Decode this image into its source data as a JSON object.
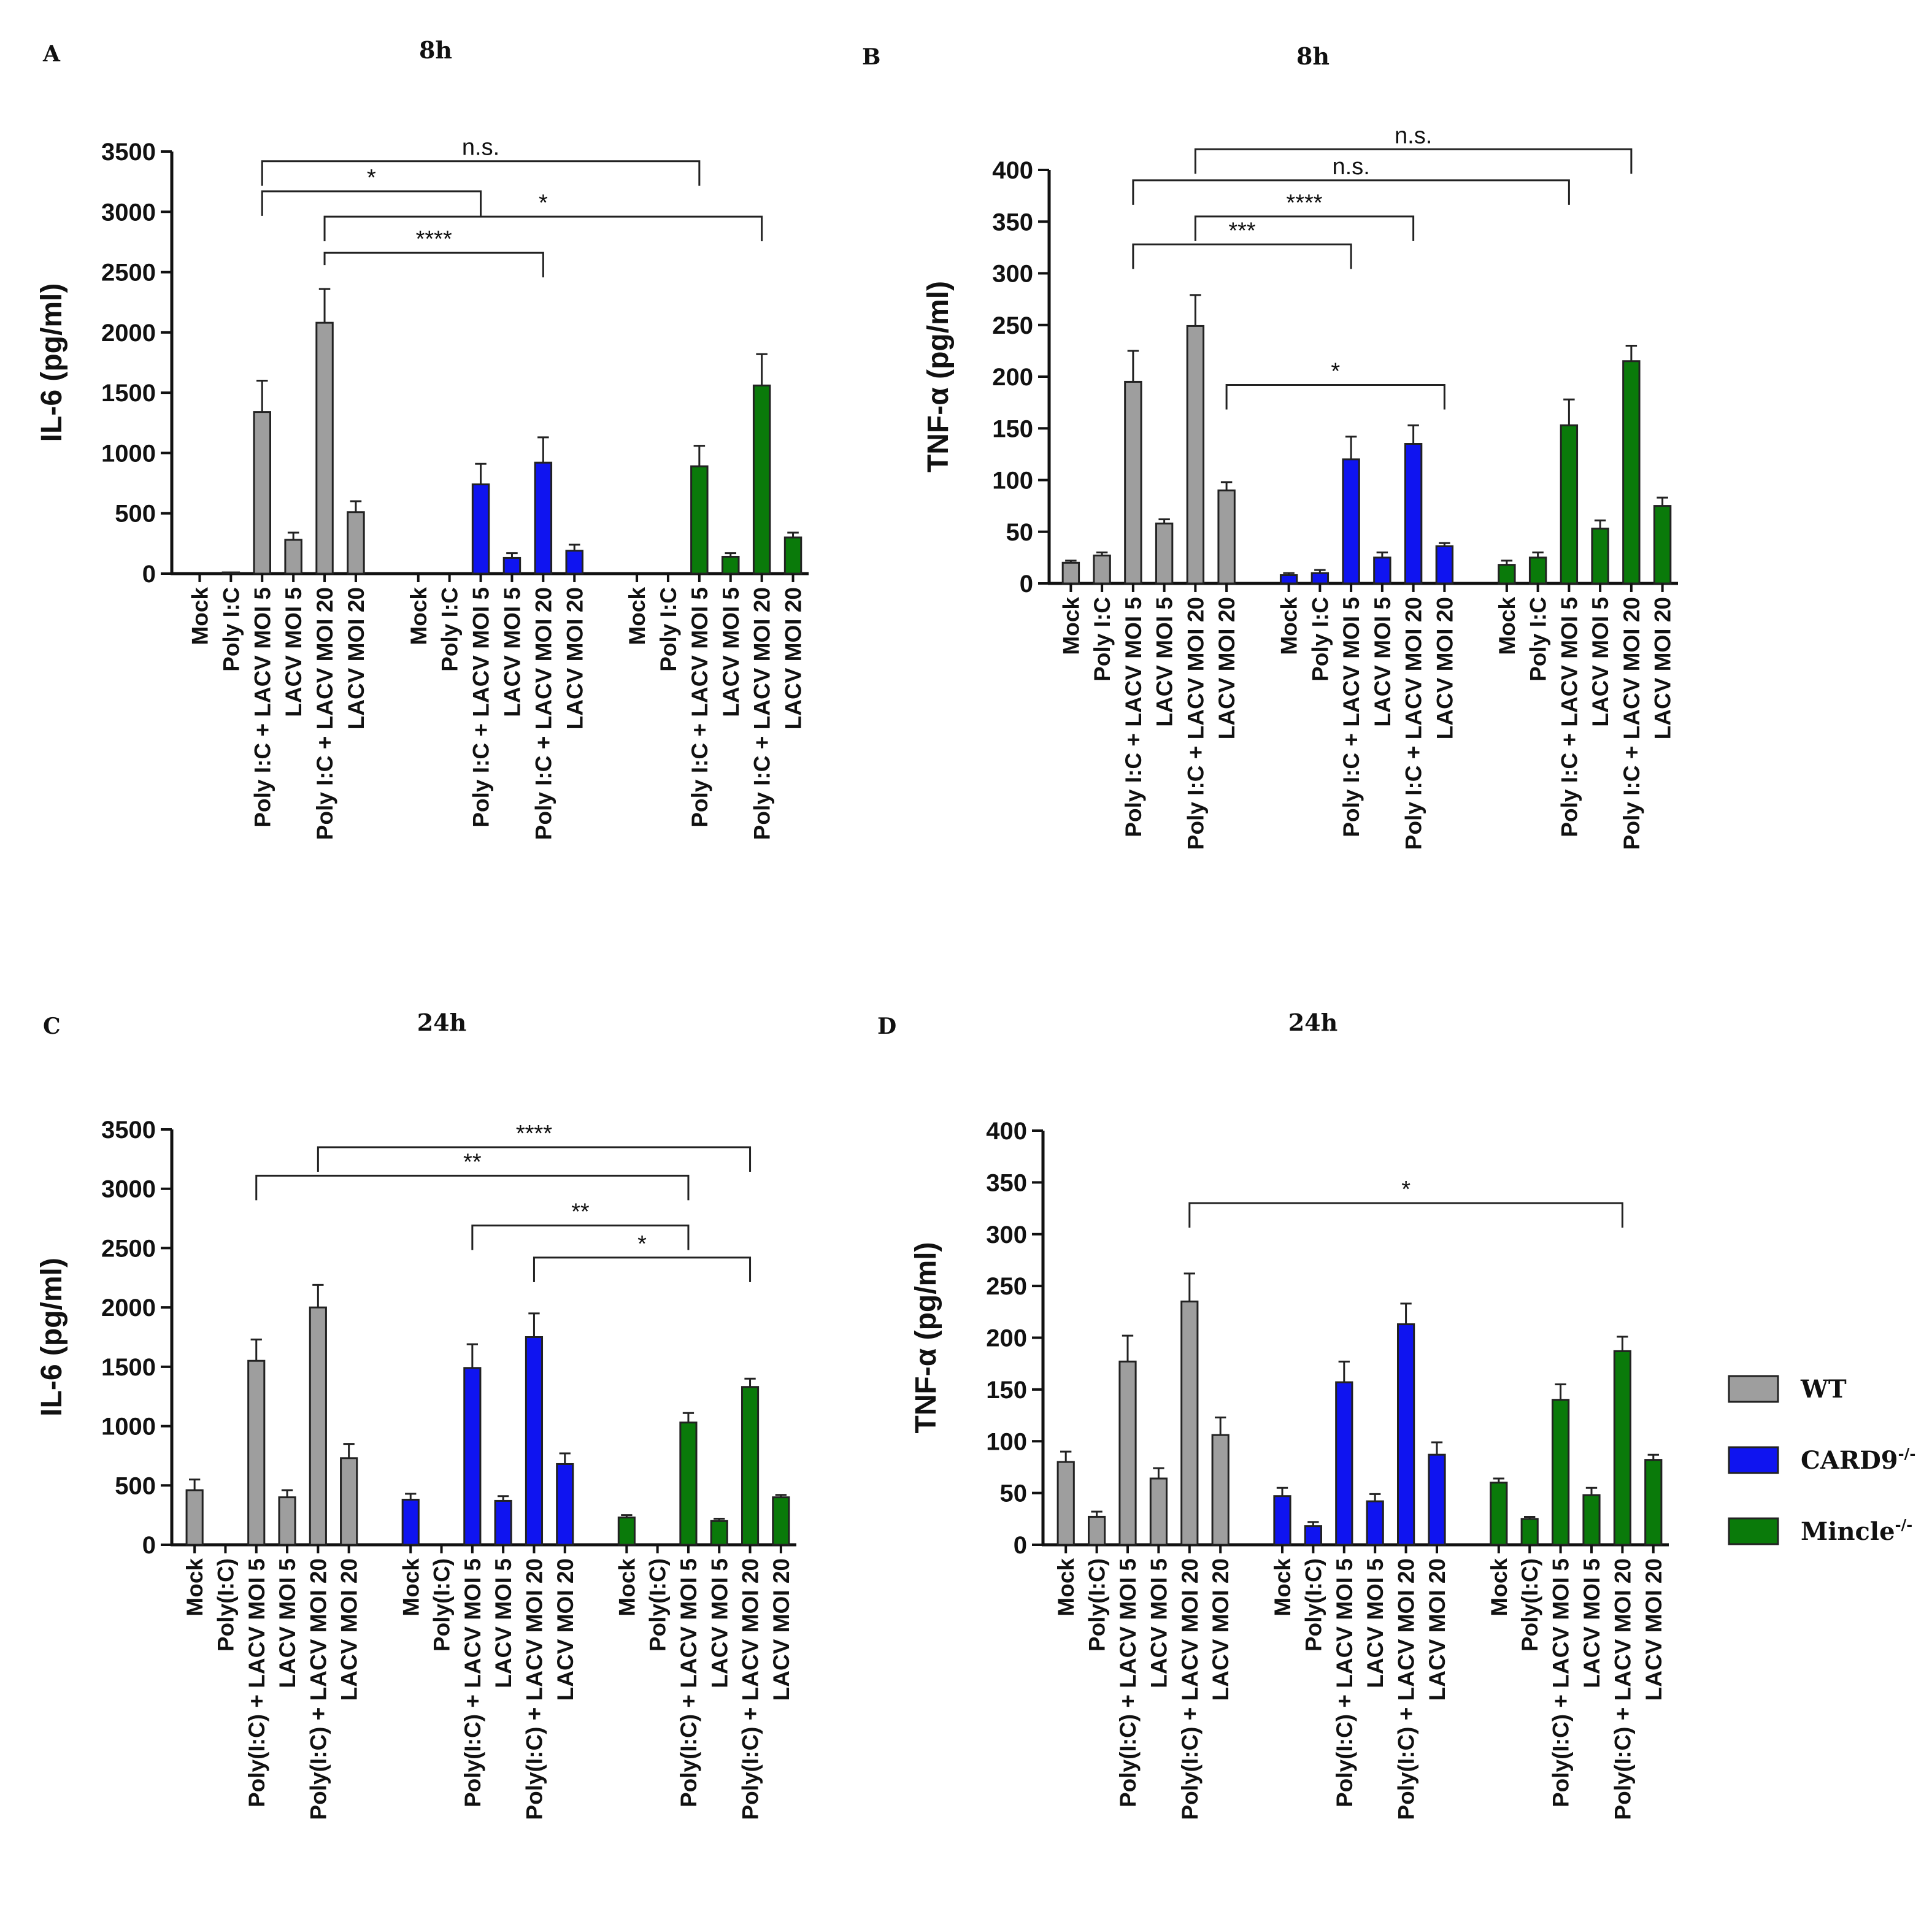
{
  "colors": {
    "WT": "#9e9e9e",
    "CARD9": "#0f14f0",
    "Mincle": "#0a7a0a"
  },
  "legend": [
    {
      "key": "WT",
      "label": "WT",
      "sup": ""
    },
    {
      "key": "CARD9",
      "label": "CARD9",
      "sup": "-/-"
    },
    {
      "key": "Mincle",
      "label": "Mincle",
      "sup": "-/-"
    }
  ],
  "panels": [
    {
      "letter": "A",
      "title": "8h"
    },
    {
      "letter": "B",
      "title": "8h"
    },
    {
      "letter": "C",
      "title": "24h"
    },
    {
      "letter": "D",
      "title": "24h"
    }
  ],
  "chart_data": [
    {
      "type": "bar",
      "panel": "A",
      "title": "8h",
      "ylabel": "IL-6 (pg/ml)",
      "ylim": [
        0,
        3500
      ],
      "yticks": [
        0,
        500,
        1000,
        1500,
        2000,
        2500,
        3000,
        3500
      ],
      "categories": [
        "Mock",
        "Poly I:C",
        "Poly I:C + LACV MOI 5",
        "LACV MOI 5",
        "Poly I:C + LACV MOI 20",
        "LACV MOI 20"
      ],
      "series": [
        {
          "name": "WT",
          "values": [
            0,
            10,
            1340,
            280,
            2080,
            510
          ],
          "errors": [
            0,
            0,
            260,
            60,
            280,
            90
          ]
        },
        {
          "name": "CARD9-/-",
          "values": [
            0,
            0,
            740,
            130,
            920,
            190
          ],
          "errors": [
            0,
            0,
            170,
            40,
            210,
            50
          ]
        },
        {
          "name": "Mincle-/-",
          "values": [
            0,
            0,
            890,
            140,
            1560,
            300
          ],
          "errors": [
            0,
            0,
            170,
            30,
            260,
            40
          ]
        }
      ],
      "significance": [
        {
          "from": [
            0,
            2
          ],
          "to": [
            2,
            2
          ],
          "label": "n.s.",
          "level": 3420
        },
        {
          "from": [
            0,
            2
          ],
          "to": [
            1,
            2
          ],
          "label": "*",
          "level": 3170
        },
        {
          "from": [
            0,
            4
          ],
          "to": [
            2,
            4
          ],
          "label": "*",
          "level": 2960
        },
        {
          "from": [
            0,
            4
          ],
          "to": [
            1,
            4
          ],
          "label": "****",
          "level": 2660
        }
      ]
    },
    {
      "type": "bar",
      "panel": "B",
      "title": "8h",
      "ylabel": "TNF-α (pg/ml)",
      "ylim": [
        0,
        400
      ],
      "yticks": [
        0,
        50,
        100,
        150,
        200,
        250,
        300,
        350,
        400
      ],
      "categories": [
        "Mock",
        "Poly I:C",
        "Poly I:C + LACV MOI 5",
        "LACV MOI 5",
        "Poly I:C + LACV MOI 20",
        "LACV MOI 20"
      ],
      "series": [
        {
          "name": "WT",
          "values": [
            20,
            27,
            195,
            58,
            249,
            90
          ],
          "errors": [
            2,
            3,
            30,
            4,
            30,
            8
          ]
        },
        {
          "name": "CARD9-/-",
          "values": [
            8,
            10,
            120,
            25,
            135,
            36
          ],
          "errors": [
            2,
            3,
            22,
            5,
            18,
            3
          ]
        },
        {
          "name": "Mincle-/-",
          "values": [
            18,
            25,
            153,
            53,
            215,
            75
          ],
          "errors": [
            4,
            5,
            25,
            8,
            15,
            8
          ]
        }
      ],
      "significance": [
        {
          "from": [
            0,
            4
          ],
          "to": [
            2,
            4
          ],
          "label": "n.s.",
          "level": 420
        },
        {
          "from": [
            0,
            2
          ],
          "to": [
            2,
            2
          ],
          "label": "n.s.",
          "level": 390
        },
        {
          "from": [
            0,
            4
          ],
          "to": [
            1,
            4
          ],
          "label": "****",
          "level": 355
        },
        {
          "from": [
            0,
            2
          ],
          "to": [
            1,
            2
          ],
          "label": "***",
          "level": 328
        },
        {
          "from": [
            0,
            5
          ],
          "to": [
            1,
            5
          ],
          "label": "*",
          "level": 192
        }
      ]
    },
    {
      "type": "bar",
      "panel": "C",
      "title": "24h",
      "ylabel": "IL-6 (pg/ml)",
      "ylim": [
        0,
        3500
      ],
      "yticks": [
        0,
        500,
        1000,
        1500,
        2000,
        2500,
        3000,
        3500
      ],
      "categories": [
        "Mock",
        "Poly(I:C)",
        "Poly(I:C) + LACV MOI 5",
        "LACV MOI 5",
        "Poly(I:C) + LACV MOI 20",
        "LACV MOI 20"
      ],
      "series": [
        {
          "name": "WT",
          "values": [
            460,
            0,
            1550,
            400,
            2000,
            730
          ],
          "errors": [
            90,
            0,
            180,
            60,
            190,
            120
          ]
        },
        {
          "name": "CARD9-/-",
          "values": [
            380,
            0,
            1490,
            370,
            1750,
            680
          ],
          "errors": [
            50,
            0,
            200,
            40,
            200,
            90
          ]
        },
        {
          "name": "Mincle-/-",
          "values": [
            230,
            0,
            1030,
            200,
            1330,
            400
          ],
          "errors": [
            20,
            0,
            80,
            20,
            70,
            20
          ]
        }
      ],
      "significance": [
        {
          "from": [
            0,
            4
          ],
          "to": [
            2,
            4
          ],
          "label": "****",
          "level": 3350
        },
        {
          "from": [
            0,
            2
          ],
          "to": [
            2,
            2
          ],
          "label": "**",
          "level": 3110
        },
        {
          "from": [
            1,
            2
          ],
          "to": [
            2,
            2
          ],
          "label": "**",
          "level": 2690
        },
        {
          "from": [
            1,
            4
          ],
          "to": [
            2,
            4
          ],
          "label": "*",
          "level": 2420
        }
      ]
    },
    {
      "type": "bar",
      "panel": "D",
      "title": "24h",
      "ylabel": "TNF-α (pg/ml)",
      "ylim": [
        0,
        400
      ],
      "yticks": [
        0,
        50,
        100,
        150,
        200,
        250,
        300,
        350,
        400
      ],
      "categories": [
        "Mock",
        "Poly(I:C)",
        "Poly(I:C) + LACV MOI 5",
        "LACV MOI 5",
        "Poly(I:C) + LACV MOI 20",
        "LACV MOI 20"
      ],
      "series": [
        {
          "name": "WT",
          "values": [
            80,
            27,
            177,
            64,
            235,
            106
          ],
          "errors": [
            10,
            5,
            25,
            10,
            27,
            17
          ]
        },
        {
          "name": "CARD9-/-",
          "values": [
            47,
            18,
            157,
            42,
            213,
            87
          ],
          "errors": [
            8,
            4,
            20,
            7,
            20,
            12
          ]
        },
        {
          "name": "Mincle-/-",
          "values": [
            60,
            25,
            140,
            48,
            187,
            82
          ],
          "errors": [
            4,
            2,
            15,
            7,
            14,
            5
          ]
        }
      ],
      "significance": [
        {
          "from": [
            0,
            4
          ],
          "to": [
            2,
            4
          ],
          "label": "*",
          "level": 330
        }
      ]
    }
  ]
}
